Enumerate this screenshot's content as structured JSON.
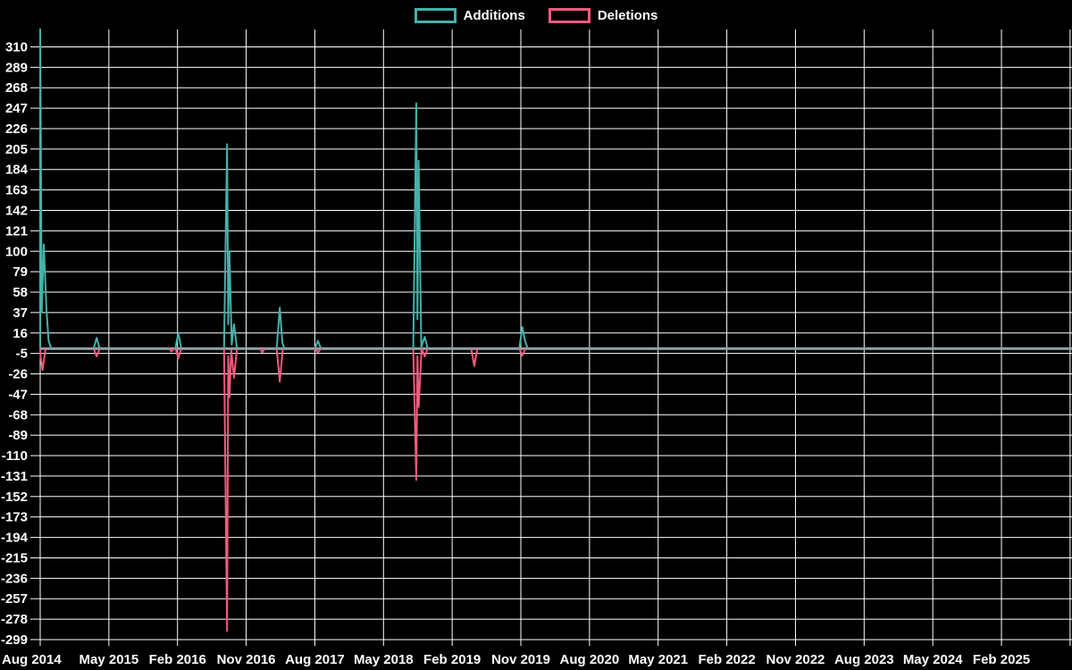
{
  "legend": {
    "items": [
      {
        "label": "Additions",
        "color": "#46b1a8"
      },
      {
        "label": "Deletions",
        "color": "#f15b7d"
      }
    ]
  },
  "chart_data": {
    "type": "line",
    "title": "",
    "legend_position": "top center",
    "background_color": "#000000",
    "grid": true,
    "grid_color": "#ffffff",
    "axis_text_color": "#ffffff",
    "zero_line_color": "#8fa3ac",
    "x_axis": {
      "tick_labels": [
        "Aug 2014",
        "May 2015",
        "Feb 2016",
        "Nov 2016",
        "Aug 2017",
        "May 2018",
        "Feb 2019",
        "Nov 2019",
        "Aug 2020",
        "May 2021",
        "Feb 2022",
        "Nov 2022",
        "Aug 2023",
        "May 2024",
        "Feb 2025"
      ],
      "months_between_ticks": 9,
      "total_months": 135
    },
    "y_axis": {
      "tick_values": [
        310,
        289,
        268,
        247,
        226,
        205,
        184,
        163,
        142,
        121,
        100,
        79,
        58,
        37,
        16,
        -5,
        -26,
        -47,
        -68,
        -89,
        -110,
        -131,
        -152,
        -173,
        -194,
        -215,
        -236,
        -257,
        -278,
        -299
      ],
      "min": -299,
      "max": 328
    },
    "series": [
      {
        "name": "Additions",
        "color": "#46b1a8",
        "segments": [
          [
            [
              0,
              0
            ],
            [
              0,
              328
            ],
            [
              0.2,
              37
            ],
            [
              0.47,
              107
            ],
            [
              0.82,
              40
            ],
            [
              1.1,
              8
            ],
            [
              1.45,
              0
            ]
          ],
          [
            [
              7.0,
              0
            ],
            [
              7.4,
              11
            ],
            [
              7.8,
              0
            ]
          ],
          [
            [
              17.7,
              0
            ],
            [
              18.1,
              16
            ],
            [
              18.5,
              0
            ]
          ],
          [
            [
              24.1,
              0
            ],
            [
              24.5,
              210
            ],
            [
              24.65,
              25
            ],
            [
              24.8,
              99
            ],
            [
              25.1,
              4
            ],
            [
              25.4,
              25
            ],
            [
              25.8,
              0
            ]
          ],
          [
            [
              31.0,
              0
            ],
            [
              31.4,
              42
            ],
            [
              31.75,
              6
            ],
            [
              32.0,
              0
            ]
          ],
          [
            [
              36.0,
              0
            ],
            [
              36.4,
              8
            ],
            [
              36.8,
              0
            ]
          ],
          [
            [
              48.9,
              0
            ],
            [
              49.3,
              252
            ],
            [
              49.45,
              30
            ],
            [
              49.6,
              193
            ],
            [
              49.95,
              2
            ],
            [
              50.4,
              12
            ],
            [
              50.8,
              0
            ]
          ],
          [
            [
              62.8,
              0
            ],
            [
              63.2,
              22
            ],
            [
              63.55,
              8
            ],
            [
              63.9,
              0
            ]
          ]
        ]
      },
      {
        "name": "Deletions",
        "color": "#f15b7d",
        "segments": [
          [
            [
              0,
              0
            ],
            [
              0.05,
              -8
            ],
            [
              0.3,
              -22
            ],
            [
              0.7,
              0
            ]
          ],
          [
            [
              7.0,
              0
            ],
            [
              7.4,
              -8
            ],
            [
              7.8,
              0
            ]
          ],
          [
            [
              16.9,
              0
            ],
            [
              17.2,
              -3
            ],
            [
              17.5,
              0
            ]
          ],
          [
            [
              17.75,
              0
            ],
            [
              18.1,
              -10
            ],
            [
              18.5,
              0
            ]
          ],
          [
            [
              24.1,
              0
            ],
            [
              24.5,
              -290
            ],
            [
              24.65,
              -8
            ],
            [
              24.8,
              -50
            ],
            [
              25.05,
              -2
            ],
            [
              25.4,
              -30
            ],
            [
              25.8,
              0
            ]
          ],
          [
            [
              28.8,
              0
            ],
            [
              29.1,
              -4
            ],
            [
              29.45,
              0
            ]
          ],
          [
            [
              31.0,
              0
            ],
            [
              31.4,
              -34
            ],
            [
              31.8,
              0
            ]
          ],
          [
            [
              36.0,
              0
            ],
            [
              36.4,
              -4
            ],
            [
              36.8,
              0
            ]
          ],
          [
            [
              48.9,
              0
            ],
            [
              49.3,
              -135
            ],
            [
              49.45,
              -8
            ],
            [
              49.6,
              -60
            ],
            [
              50.0,
              0
            ]
          ],
          [
            [
              50.0,
              0
            ],
            [
              50.4,
              -8
            ],
            [
              50.8,
              0
            ]
          ],
          [
            [
              56.5,
              0
            ],
            [
              56.9,
              -18
            ],
            [
              57.3,
              0
            ]
          ],
          [
            [
              62.8,
              0
            ],
            [
              63.2,
              -7
            ],
            [
              63.6,
              0
            ]
          ]
        ]
      }
    ]
  }
}
